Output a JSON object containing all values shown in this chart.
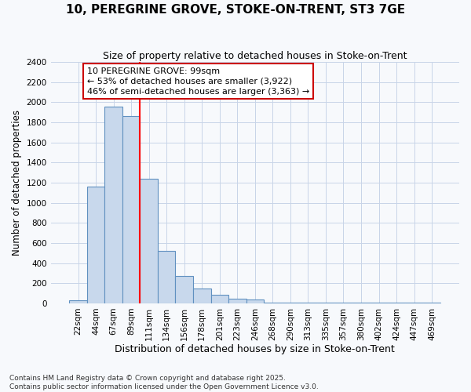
{
  "title": "10, PEREGRINE GROVE, STOKE-ON-TRENT, ST3 7GE",
  "subtitle": "Size of property relative to detached houses in Stoke-on-Trent",
  "xlabel": "Distribution of detached houses by size in Stoke-on-Trent",
  "ylabel": "Number of detached properties",
  "bin_labels": [
    "22sqm",
    "44sqm",
    "67sqm",
    "89sqm",
    "111sqm",
    "134sqm",
    "156sqm",
    "178sqm",
    "201sqm",
    "223sqm",
    "246sqm",
    "268sqm",
    "290sqm",
    "313sqm",
    "335sqm",
    "357sqm",
    "380sqm",
    "402sqm",
    "424sqm",
    "447sqm",
    "469sqm"
  ],
  "bar_heights": [
    30,
    1160,
    1960,
    1860,
    1240,
    520,
    275,
    145,
    85,
    45,
    35,
    10,
    5,
    5,
    5,
    5,
    5,
    5,
    5,
    5,
    5
  ],
  "bar_color": "#c8d8ec",
  "bar_edgecolor": "#6090c0",
  "ylim": [
    0,
    2400
  ],
  "yticks": [
    0,
    200,
    400,
    600,
    800,
    1000,
    1200,
    1400,
    1600,
    1800,
    2000,
    2200,
    2400
  ],
  "red_line_x": 4.0,
  "annotation_text": "10 PEREGRINE GROVE: 99sqm\n← 53% of detached houses are smaller (3,922)\n46% of semi-detached houses are larger (3,363) →",
  "background_color": "#f7f9fc",
  "grid_color": "#c8d4e8",
  "footer_line1": "Contains HM Land Registry data © Crown copyright and database right 2025.",
  "footer_line2": "Contains public sector information licensed under the Open Government Licence v3.0."
}
